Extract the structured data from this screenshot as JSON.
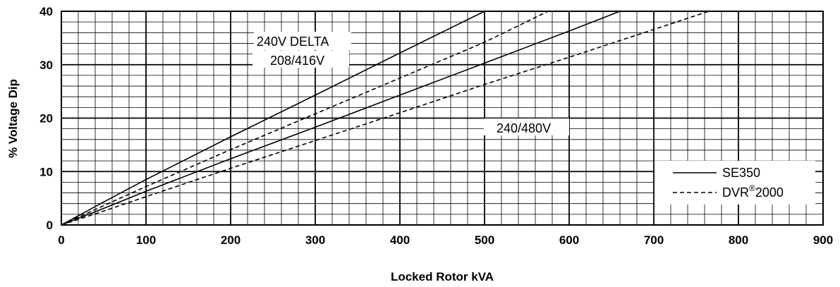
{
  "chart_data": {
    "type": "line",
    "xlabel": "Locked Rotor kVA",
    "ylabel": "% Voltage Dip",
    "xlim": [
      0,
      900
    ],
    "ylim": [
      0,
      40
    ],
    "x_ticks": [
      "0",
      "100",
      "200",
      "300",
      "400",
      "500",
      "600",
      "700",
      "800",
      "900"
    ],
    "y_ticks": [
      "0",
      "10",
      "20",
      "30",
      "40"
    ],
    "grid": "on",
    "legend_position": "bottom-right",
    "legend": [
      {
        "label": "SE350",
        "style": "solid"
      },
      {
        "label_main": "DVR",
        "label_sup": "®",
        "label_tail": "2000",
        "style": "dashed"
      }
    ],
    "annotations": [
      "240V DELTA",
      "208/416V",
      "240/480V"
    ],
    "series": [
      {
        "group": "240V DELTA",
        "style": "solid",
        "x": [
          0,
          50,
          100,
          200,
          300,
          400,
          500
        ],
        "y": [
          0,
          4.3,
          8.5,
          16.5,
          24.3,
          32.2,
          40
        ]
      },
      {
        "group": "240V DELTA",
        "style": "dashed",
        "x": [
          0,
          50,
          100,
          200,
          300,
          400,
          500,
          575
        ],
        "y": [
          0,
          3.6,
          7.2,
          14.1,
          20.8,
          27.5,
          34.2,
          40
        ]
      },
      {
        "group": "208/416V",
        "style": "solid",
        "x": [
          0,
          50,
          100,
          200,
          300,
          400,
          500,
          600,
          660
        ],
        "y": [
          0,
          3.1,
          6.3,
          12.4,
          18.3,
          24.3,
          30.3,
          36.3,
          40
        ]
      },
      {
        "group": "240/480V",
        "style": "dashed",
        "x": [
          0,
          50,
          100,
          200,
          300,
          400,
          500,
          600,
          700,
          765
        ],
        "y": [
          0,
          2.6,
          5.3,
          10.6,
          15.8,
          21,
          26.3,
          31.4,
          36.6,
          40
        ]
      }
    ]
  }
}
